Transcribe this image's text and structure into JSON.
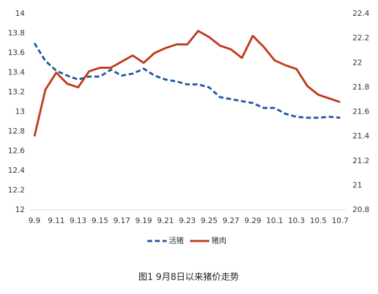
{
  "chart_data": {
    "type": "line",
    "caption": "图1 9月8日以来猪价走势",
    "categories": [
      "9.9",
      null,
      "9.11",
      null,
      "9.13",
      null,
      "9.15",
      null,
      "9.17",
      null,
      "9.19",
      null,
      "9.21",
      null,
      "9.23",
      null,
      "9.25",
      null,
      "9.27",
      null,
      "9.29",
      null,
      "10.1",
      null,
      "10.3",
      null,
      "10.5",
      null,
      "10.7"
    ],
    "series": [
      {
        "name": "活猪",
        "color": "#2458a0",
        "dashed": true,
        "axis": "y",
        "values": [
          13.7,
          13.52,
          13.42,
          13.37,
          13.33,
          13.36,
          13.36,
          13.43,
          13.37,
          13.39,
          13.44,
          13.37,
          13.33,
          13.31,
          13.28,
          13.28,
          13.25,
          13.15,
          13.13,
          13.11,
          13.09,
          13.04,
          13.04,
          12.98,
          12.95,
          12.94,
          12.94,
          12.95,
          12.94
        ]
      },
      {
        "name": "猪肉",
        "color": "#c0391b",
        "dashed": false,
        "axis": "y2",
        "values": [
          21.4,
          21.78,
          21.92,
          21.83,
          21.8,
          21.93,
          21.96,
          21.96,
          22.01,
          22.06,
          22.0,
          22.08,
          22.12,
          22.15,
          22.15,
          22.26,
          22.21,
          22.14,
          22.11,
          22.04,
          22.22,
          22.13,
          22.02,
          21.98,
          21.95,
          21.81,
          21.74,
          21.71,
          21.68
        ]
      }
    ],
    "ylim": [
      12,
      14
    ],
    "yticks": [
      12,
      12.2,
      12.4,
      12.6,
      12.8,
      13,
      13.2,
      13.4,
      13.6,
      13.8,
      14
    ],
    "y2lim": [
      20.8,
      22.4
    ],
    "y2ticks": [
      20.8,
      21,
      21.2,
      21.4,
      21.6,
      21.8,
      22,
      22.2,
      22.4
    ],
    "grid": false,
    "legend": "bottom"
  }
}
